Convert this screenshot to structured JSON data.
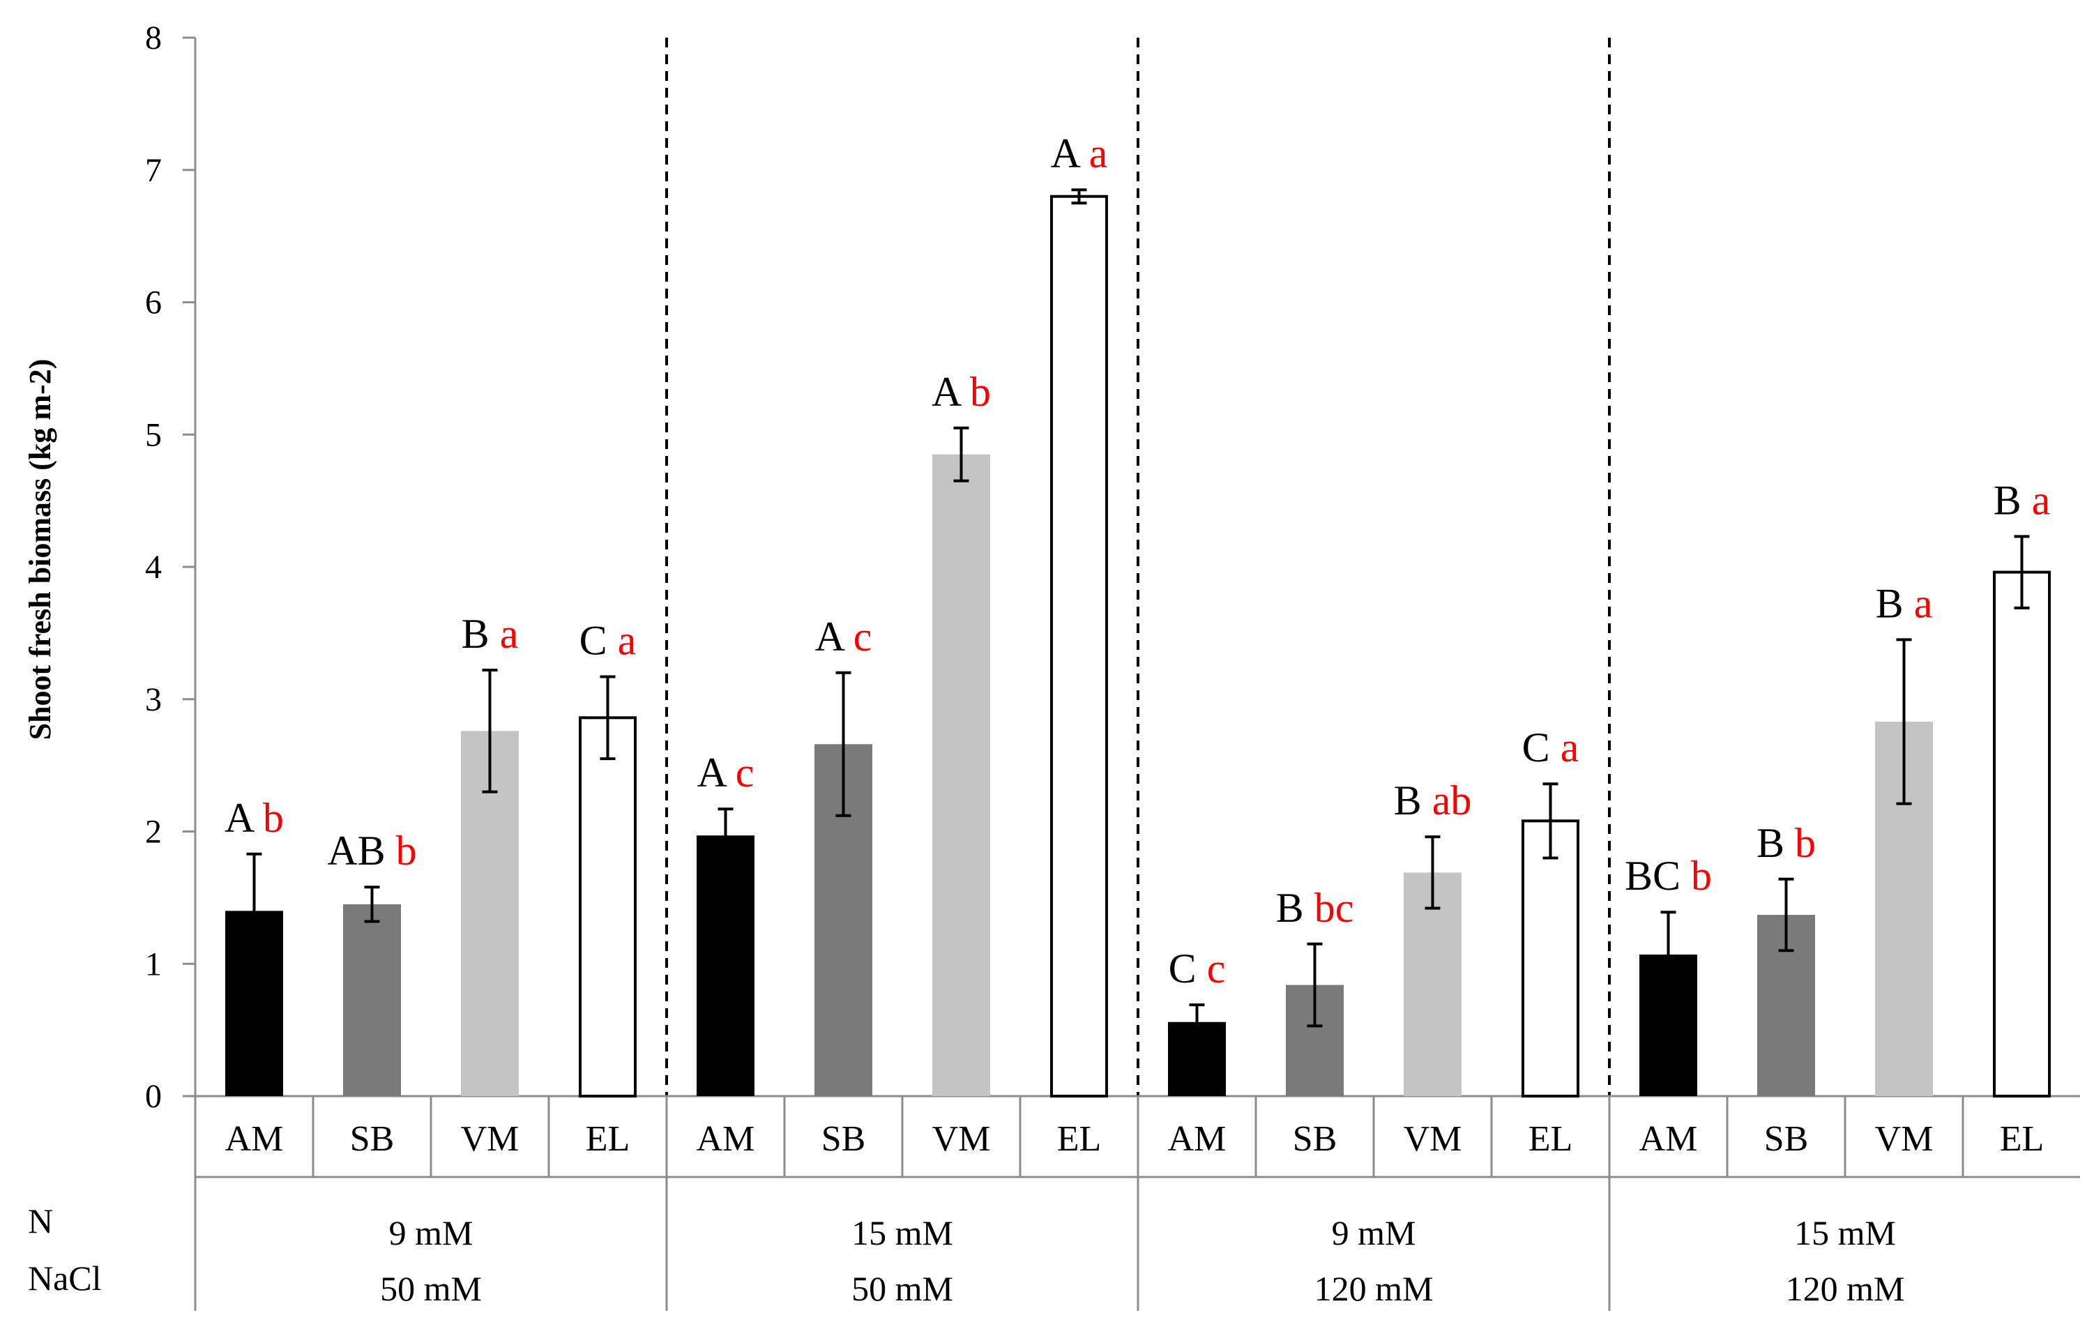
{
  "chart_data": {
    "type": "bar",
    "title": "",
    "ylabel": "Shoot fresh biomass (kg m-2)",
    "xlabel": "",
    "ylim": [
      0,
      8
    ],
    "yticks": [
      0,
      1,
      2,
      3,
      4,
      5,
      6,
      7,
      8
    ],
    "categories": [
      "AM",
      "SB",
      "VM",
      "EL"
    ],
    "row_labels": [
      "N",
      "NaCl"
    ],
    "colors": {
      "AM": "#000000",
      "SB": "#7a7a7a",
      "VM": "#c4c4c4",
      "EL": "#ffffff",
      "upper_letter": "#000000",
      "lower_letter": "#ff0000",
      "axis": "#8c8c8c"
    },
    "groups": [
      {
        "n": "9 mM",
        "nacl": "50 mM",
        "bars": [
          {
            "cat": "AM",
            "value": 1.4,
            "err": 0.43,
            "upper": "A",
            "lower": "b"
          },
          {
            "cat": "SB",
            "value": 1.45,
            "err": 0.13,
            "upper": "AB",
            "lower": "b"
          },
          {
            "cat": "VM",
            "value": 2.76,
            "err": 0.46,
            "upper": "B",
            "lower": "a"
          },
          {
            "cat": "EL",
            "value": 2.86,
            "err": 0.31,
            "upper": "C",
            "lower": "a"
          }
        ]
      },
      {
        "n": "15 mM",
        "nacl": "50 mM",
        "bars": [
          {
            "cat": "AM",
            "value": 1.97,
            "err": 0.2,
            "upper": "A",
            "lower": "c"
          },
          {
            "cat": "SB",
            "value": 2.66,
            "err": 0.54,
            "upper": "A",
            "lower": "c"
          },
          {
            "cat": "VM",
            "value": 4.85,
            "err": 0.2,
            "upper": "A",
            "lower": "b"
          },
          {
            "cat": "EL",
            "value": 6.8,
            "err": 0.05,
            "upper": "A",
            "lower": "a"
          }
        ]
      },
      {
        "n": "9 mM",
        "nacl": "120 mM",
        "bars": [
          {
            "cat": "AM",
            "value": 0.56,
            "err": 0.13,
            "upper": "C",
            "lower": "c"
          },
          {
            "cat": "SB",
            "value": 0.84,
            "err": 0.31,
            "upper": "B",
            "lower": "bc"
          },
          {
            "cat": "VM",
            "value": 1.69,
            "err": 0.27,
            "upper": "B",
            "lower": "ab"
          },
          {
            "cat": "EL",
            "value": 2.08,
            "err": 0.28,
            "upper": "C",
            "lower": "a"
          }
        ]
      },
      {
        "n": "15 mM",
        "nacl": "120 mM",
        "bars": [
          {
            "cat": "AM",
            "value": 1.07,
            "err": 0.32,
            "upper": "BC",
            "lower": "b"
          },
          {
            "cat": "SB",
            "value": 1.37,
            "err": 0.27,
            "upper": "B",
            "lower": "b"
          },
          {
            "cat": "VM",
            "value": 2.83,
            "err": 0.62,
            "upper": "B",
            "lower": "a"
          },
          {
            "cat": "EL",
            "value": 3.96,
            "err": 0.27,
            "upper": "B",
            "lower": "a"
          }
        ]
      }
    ]
  }
}
